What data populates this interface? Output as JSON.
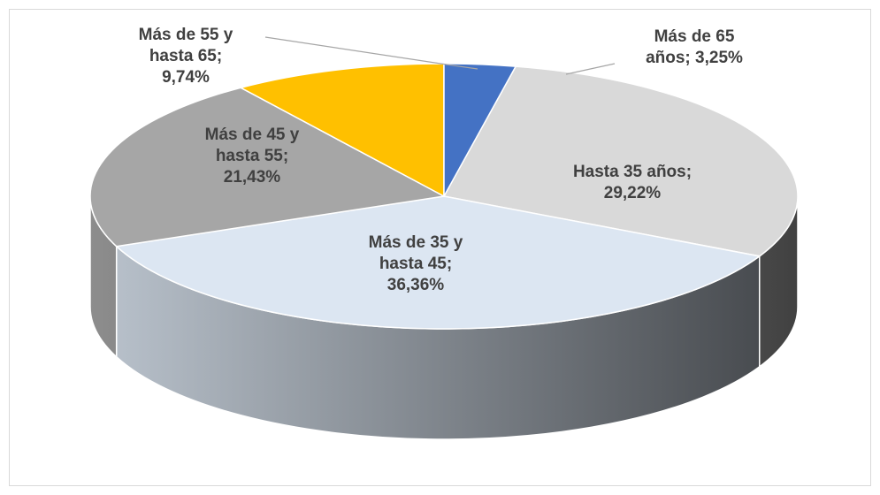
{
  "chart_data": {
    "type": "pie",
    "three_d": true,
    "values": [
      29.22,
      36.36,
      21.43,
      9.74,
      3.25
    ],
    "value_labels": [
      "Hasta 35 años; 29,22%",
      "Más de 35 y hasta 45; 36,36%",
      "Más de 45 y hasta 55; 21,43%",
      "Más de 55 y hasta 65; 9,74%",
      "Más de 65 años; 3,25%"
    ],
    "colors": [
      "#d9d9d9",
      "#dce6f2",
      "#a6a6a6",
      "#ffc000",
      "#4472c4"
    ]
  }
}
